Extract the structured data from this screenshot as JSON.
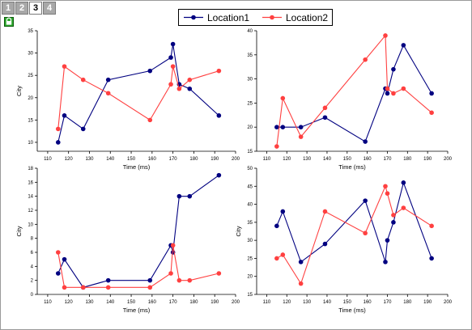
{
  "tabs": [
    {
      "label": "1",
      "active": false
    },
    {
      "label": "2",
      "active": false
    },
    {
      "label": "3",
      "active": true
    },
    {
      "label": "4",
      "active": false
    }
  ],
  "legend": {
    "position": "top-center",
    "entries": [
      {
        "name": "Location1",
        "color": "#000080"
      },
      {
        "name": "Location2",
        "color": "#ff4040"
      }
    ]
  },
  "chart_data": [
    {
      "type": "line",
      "xlabel": "Time (ms)",
      "ylabel": "City",
      "xlim": [
        105,
        200
      ],
      "ylim": [
        8,
        35
      ],
      "xticks": [
        110,
        120,
        130,
        140,
        150,
        160,
        170,
        180,
        190,
        200
      ],
      "yticks": [
        10,
        15,
        20,
        25,
        30,
        35
      ],
      "series": [
        {
          "name": "Location1",
          "x": [
            115,
            118,
            127,
            139,
            159,
            169,
            170,
            173,
            178,
            192
          ],
          "y": [
            10,
            16,
            13,
            24,
            26,
            29,
            32,
            23,
            22,
            16
          ]
        },
        {
          "name": "Location2",
          "x": [
            115,
            118,
            127,
            139,
            159,
            169,
            170,
            173,
            178,
            192
          ],
          "y": [
            13,
            27,
            24,
            21,
            15,
            23,
            27,
            22,
            24,
            26
          ]
        }
      ]
    },
    {
      "type": "line",
      "xlabel": "Time (ms)",
      "ylabel": "",
      "xlim": [
        105,
        200
      ],
      "ylim": [
        15,
        40
      ],
      "xticks": [
        110,
        120,
        130,
        140,
        150,
        160,
        170,
        180,
        190,
        200
      ],
      "yticks": [
        15,
        20,
        25,
        30,
        35,
        40
      ],
      "series": [
        {
          "name": "Location1",
          "x": [
            115,
            118,
            127,
            139,
            159,
            169,
            170,
            173,
            178,
            192
          ],
          "y": [
            20,
            20,
            20,
            22,
            17,
            28,
            27,
            32,
            37,
            27
          ]
        },
        {
          "name": "Location2",
          "x": [
            115,
            118,
            127,
            139,
            159,
            169,
            170,
            173,
            178,
            192
          ],
          "y": [
            16,
            26,
            18,
            24,
            34,
            39,
            28,
            27,
            28,
            23
          ]
        }
      ]
    },
    {
      "type": "line",
      "xlabel": "Time (ms)",
      "ylabel": "City",
      "xlim": [
        105,
        200
      ],
      "ylim": [
        0,
        18
      ],
      "xticks": [
        110,
        120,
        130,
        140,
        150,
        160,
        170,
        180,
        190,
        200
      ],
      "yticks": [
        0,
        2,
        4,
        6,
        8,
        10,
        12,
        14,
        16,
        18
      ],
      "series": [
        {
          "name": "Location1",
          "x": [
            115,
            118,
            127,
            139,
            159,
            169,
            170,
            173,
            178,
            192
          ],
          "y": [
            3,
            5,
            1,
            2,
            2,
            7,
            6,
            14,
            14,
            17
          ]
        },
        {
          "name": "Location2",
          "x": [
            115,
            118,
            127,
            139,
            159,
            169,
            170,
            173,
            178,
            192
          ],
          "y": [
            6,
            1,
            1,
            1,
            1,
            3,
            7,
            2,
            2,
            3
          ]
        }
      ]
    },
    {
      "type": "line",
      "xlabel": "Time (ms)",
      "ylabel": "City",
      "xlim": [
        105,
        200
      ],
      "ylim": [
        15,
        50
      ],
      "xticks": [
        110,
        120,
        130,
        140,
        150,
        160,
        170,
        180,
        190,
        200
      ],
      "yticks": [
        15,
        20,
        25,
        30,
        35,
        40,
        45,
        50
      ],
      "series": [
        {
          "name": "Location1",
          "x": [
            115,
            118,
            127,
            139,
            159,
            169,
            170,
            173,
            178,
            192
          ],
          "y": [
            34,
            38,
            24,
            29,
            41,
            24,
            30,
            35,
            46,
            25
          ]
        },
        {
          "name": "Location2",
          "x": [
            115,
            118,
            127,
            139,
            159,
            169,
            170,
            173,
            178,
            192
          ],
          "y": [
            25,
            26,
            18,
            38,
            32,
            45,
            43,
            37,
            39,
            34
          ]
        }
      ]
    }
  ]
}
